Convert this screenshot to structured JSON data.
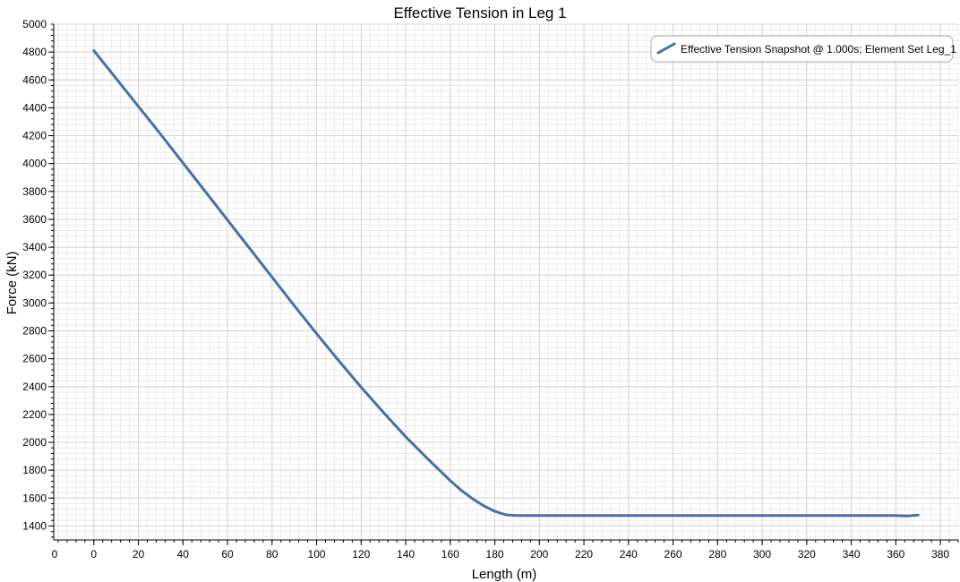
{
  "chart_data": {
    "type": "line",
    "title": "Effective Tension in Leg 1",
    "xlabel": "Length (m)",
    "ylabel": "Force (kN)",
    "xlim": [
      -18,
      388
    ],
    "ylim": [
      1300,
      5000
    ],
    "x_ticks": [
      0,
      20,
      40,
      60,
      80,
      100,
      120,
      140,
      160,
      180,
      200,
      220,
      240,
      260,
      280,
      300,
      320,
      340,
      360,
      380
    ],
    "x_edge_tick_label": "0",
    "y_ticks": [
      1400,
      1600,
      1800,
      2000,
      2200,
      2400,
      2600,
      2800,
      3000,
      3200,
      3400,
      3600,
      3800,
      4000,
      4200,
      4400,
      4600,
      4800
    ],
    "y_edge_tick_label": "5000",
    "grid": true,
    "legend_position": "top-right",
    "colors": {
      "series": "#4570a8",
      "grid_major": "#d4d4d4",
      "grid_minor": "#ececec",
      "axis": "#000000"
    },
    "series": [
      {
        "name": "Effective Tension Snapshot @ 1.000s; Element Set Leg_1",
        "x": [
          0,
          10,
          20,
          30,
          40,
          50,
          60,
          70,
          80,
          90,
          100,
          110,
          120,
          130,
          140,
          150,
          160,
          165,
          170,
          175,
          180,
          185,
          190,
          200,
          250,
          300,
          350,
          360,
          365,
          370
        ],
        "values": [
          4810,
          4610,
          4410,
          4210,
          4005,
          3800,
          3595,
          3390,
          3185,
          2980,
          2780,
          2585,
          2395,
          2215,
          2040,
          1880,
          1725,
          1655,
          1595,
          1545,
          1505,
          1480,
          1475,
          1475,
          1475,
          1475,
          1475,
          1475,
          1472,
          1478
        ]
      }
    ]
  }
}
